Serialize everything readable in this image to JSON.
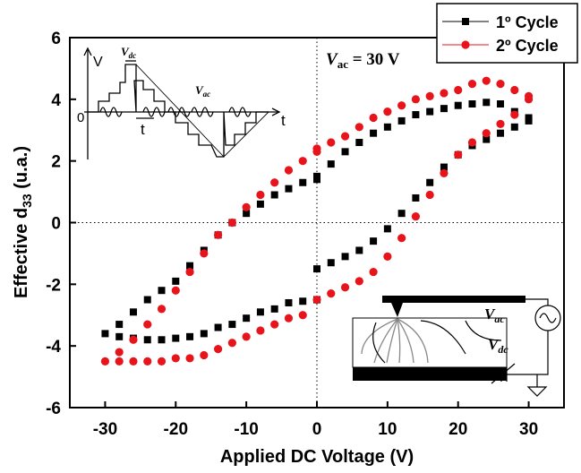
{
  "chart_data": {
    "type": "scatter",
    "xlabel": "Applied DC Voltage (V)",
    "ylabel": {
      "text": "Effective d",
      "sub": "33",
      "rest": " (u.a.)"
    },
    "xlim": [
      -35,
      35
    ],
    "xticks": [
      -30,
      -20,
      -10,
      0,
      10,
      20,
      30
    ],
    "ylim": [
      -6,
      6
    ],
    "yticks": [
      -6,
      -4,
      -2,
      0,
      2,
      4,
      6
    ],
    "zero_lines": true,
    "legend": "top-right",
    "annotations": [
      {
        "text": "V",
        "sub": "ac",
        "rest": " = 30 V"
      }
    ],
    "inset_waveform": {
      "y_axis": "V",
      "origin": "0",
      "x_axis": "t",
      "step": "t",
      "dc": {
        "text": "V",
        "sub": "dc"
      },
      "ac": {
        "text": "V",
        "sub": "ac"
      }
    },
    "inset_setup": {
      "ac": {
        "text": "V",
        "sub": "ac"
      },
      "dc": {
        "text": "V",
        "sub": "dc"
      }
    },
    "series": [
      {
        "name": "1º Cycle",
        "color": "#000000",
        "marker": "square",
        "x": [
          0,
          2,
          4,
          6,
          8,
          10,
          12,
          14,
          16,
          18,
          20,
          22,
          24,
          26,
          28,
          30,
          30,
          28,
          26,
          24,
          22,
          20,
          18,
          16,
          14,
          12,
          10,
          8,
          6,
          4,
          2,
          0,
          0,
          -2,
          -4,
          -6,
          -8,
          -10,
          -12,
          -14,
          -16,
          -18,
          -20,
          -22,
          -24,
          -26,
          -28,
          -30,
          -28,
          -26,
          -24,
          -22,
          -20,
          -18,
          -16,
          -14,
          -12,
          -10,
          -8,
          -6,
          -4,
          -2,
          0
        ],
        "y": [
          1.5,
          1.9,
          2.3,
          2.6,
          2.9,
          3.1,
          3.3,
          3.5,
          3.6,
          3.7,
          3.8,
          3.85,
          3.9,
          3.85,
          3.6,
          3.4,
          3.3,
          3.1,
          2.9,
          2.7,
          2.5,
          2.2,
          1.8,
          1.3,
          0.8,
          0.3,
          -0.2,
          -0.6,
          -0.9,
          -1.1,
          -1.3,
          -1.5,
          -2.5,
          -2.55,
          -2.6,
          -2.8,
          -2.9,
          -3.1,
          -3.3,
          -3.4,
          -3.6,
          -3.7,
          -3.75,
          -3.8,
          -3.8,
          -3.75,
          -3.7,
          -3.6,
          -3.3,
          -2.9,
          -2.5,
          -2.2,
          -1.9,
          -1.4,
          -0.9,
          -0.4,
          0.0,
          0.3,
          0.6,
          0.9,
          1.1,
          1.3,
          1.4
        ]
      },
      {
        "name": "2º Cycle",
        "color": "#e8141c",
        "marker": "circle",
        "x": [
          0,
          2,
          4,
          6,
          8,
          10,
          12,
          14,
          16,
          18,
          20,
          22,
          24,
          26,
          28,
          30,
          30,
          28,
          26,
          24,
          22,
          20,
          18,
          16,
          14,
          12,
          10,
          8,
          6,
          4,
          2,
          0,
          -2,
          -4,
          -6,
          -8,
          -10,
          -12,
          -14,
          -16,
          -18,
          -20,
          -22,
          -24,
          -26,
          -28,
          -30,
          -28,
          -26,
          -24,
          -22,
          -20,
          -18,
          -16,
          -14,
          -12,
          -10,
          -8,
          -6,
          -4,
          -2,
          0
        ],
        "y": [
          2.4,
          2.6,
          2.8,
          3.1,
          3.4,
          3.6,
          3.8,
          4.0,
          4.1,
          4.2,
          4.3,
          4.5,
          4.6,
          4.5,
          4.3,
          4.0,
          4.1,
          3.5,
          3.2,
          2.9,
          2.6,
          2.2,
          1.6,
          0.9,
          0.2,
          -0.5,
          -1.1,
          -1.6,
          -1.9,
          -2.1,
          -2.3,
          -2.5,
          -3.0,
          -3.1,
          -3.3,
          -3.5,
          -3.7,
          -3.9,
          -4.1,
          -4.3,
          -4.4,
          -4.4,
          -4.5,
          -4.5,
          -4.5,
          -4.5,
          -4.5,
          -4.2,
          -3.8,
          -3.3,
          -2.8,
          -2.2,
          -1.6,
          -1.0,
          -0.4,
          0.0,
          0.5,
          0.9,
          1.3,
          1.7,
          2.0,
          2.3
        ]
      }
    ]
  }
}
